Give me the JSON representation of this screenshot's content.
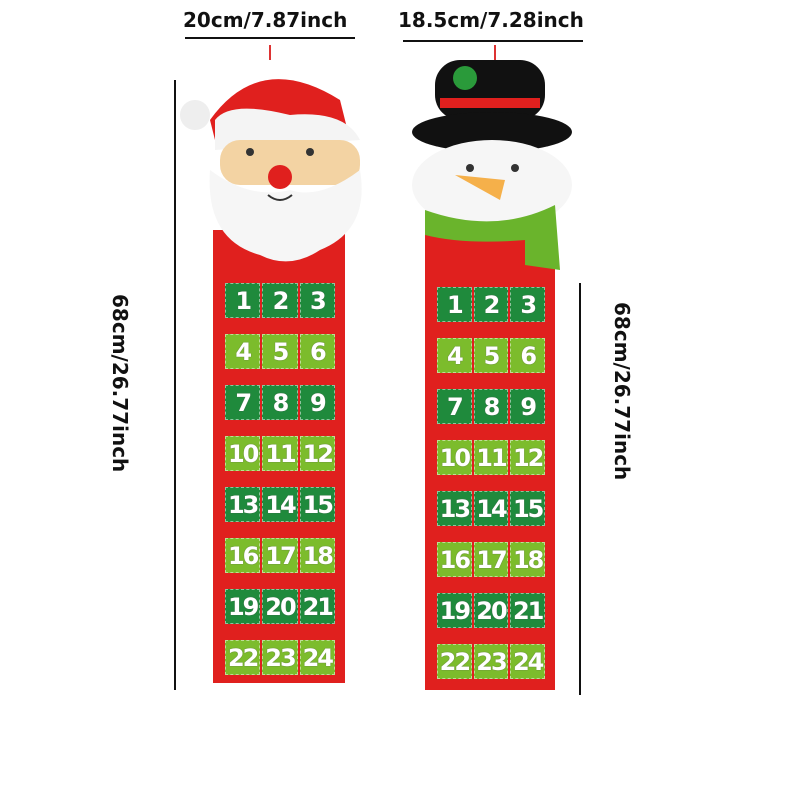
{
  "dimensions": {
    "santa_width": "20cm/7.87inch",
    "snowman_width": "18.5cm/7.28inch",
    "santa_height": "68cm/26.77inch",
    "snowman_height": "68cm/26.77inch"
  },
  "colors": {
    "felt_red": "#e0201e",
    "dark_green": "#1f8a3c",
    "light_green": "#7cbc2c"
  },
  "calendars": [
    {
      "name": "santa",
      "days": [
        "1",
        "2",
        "3",
        "4",
        "5",
        "6",
        "7",
        "8",
        "9",
        "10",
        "11",
        "12",
        "13",
        "14",
        "15",
        "16",
        "17",
        "18",
        "19",
        "20",
        "21",
        "22",
        "23",
        "24"
      ]
    },
    {
      "name": "snowman",
      "days": [
        "1",
        "2",
        "3",
        "4",
        "5",
        "6",
        "7",
        "8",
        "9",
        "10",
        "11",
        "12",
        "13",
        "14",
        "15",
        "16",
        "17",
        "18",
        "19",
        "20",
        "21",
        "22",
        "23",
        "24"
      ]
    }
  ]
}
